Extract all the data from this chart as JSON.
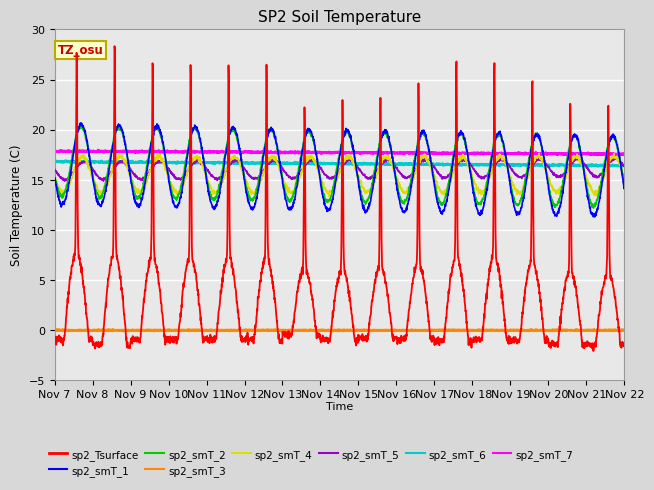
{
  "title": "SP2 Soil Temperature",
  "xlabel": "Time",
  "ylabel": "Soil Temperature (C)",
  "ylim": [
    -5,
    30
  ],
  "yticks": [
    -5,
    0,
    5,
    10,
    15,
    20,
    25,
    30
  ],
  "n_days": 15,
  "annotation_text": "TZ_osu",
  "annotation_color": "#cc0000",
  "annotation_bg": "#ffffcc",
  "annotation_border": "#bbaa00",
  "series_colors": {
    "sp2_Tsurface": "#ff0000",
    "sp2_smT_1": "#0000ff",
    "sp2_smT_2": "#00cc00",
    "sp2_smT_3": "#ff8800",
    "sp2_smT_4": "#dddd00",
    "sp2_smT_5": "#9900cc",
    "sp2_smT_6": "#00cccc",
    "sp2_smT_7": "#ff00ff"
  },
  "fig_bg": "#d8d8d8",
  "plot_bg": "#e8e8e8",
  "grid_color": "#ffffff",
  "xtick_labels": [
    "Nov 7",
    "Nov 8",
    "Nov 9",
    "Nov 10",
    "Nov 11",
    "Nov 12",
    "Nov 13",
    "Nov 14",
    "Nov 15",
    "Nov 16",
    "Nov 17",
    "Nov 18",
    "Nov 19",
    "Nov 20",
    "Nov 21",
    "Nov 22"
  ]
}
